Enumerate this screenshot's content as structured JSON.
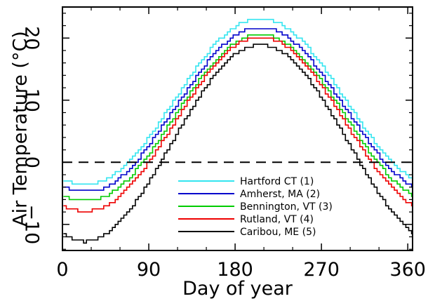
{
  "chart_data": {
    "type": "line",
    "xlabel": "Day of year",
    "ylabel": "Air Temperature (°C)",
    "xlim": [
      0,
      365
    ],
    "ylim": [
      -14.2,
      25
    ],
    "xticks": [
      0,
      90,
      180,
      270,
      360
    ],
    "yticks": [
      -10,
      0,
      10,
      20
    ],
    "xtick_labels": [
      "0",
      "90",
      "180",
      "270",
      "360"
    ],
    "ytick_labels": [
      "−10",
      "0",
      "10",
      "20"
    ],
    "grid": false,
    "legend_position": "lower-right",
    "reference_line": {
      "y": 0,
      "style": "dashed"
    },
    "series": [
      {
        "name": "Hartford CT (1)",
        "color": "#33e5f0",
        "min": -3.5,
        "min_day": 25,
        "max": 23.2,
        "max_day": 205
      },
      {
        "name": "Amherst, MA (2)",
        "color": "#0000cc",
        "min": -4.7,
        "min_day": 25,
        "max": 21.7,
        "max_day": 205
      },
      {
        "name": "Bennington, VT (3)",
        "color": "#00cc00",
        "min": -6.2,
        "min_day": 25,
        "max": 20.6,
        "max_day": 205
      },
      {
        "name": "Rutland, VT (4)",
        "color": "#ee0000",
        "min": -7.8,
        "min_day": 25,
        "max": 20.2,
        "max_day": 205
      },
      {
        "name": "Caribou, ME (5)",
        "color": "#000000",
        "min": -12.8,
        "min_day": 20,
        "max": 18.9,
        "max_day": 205
      }
    ]
  }
}
